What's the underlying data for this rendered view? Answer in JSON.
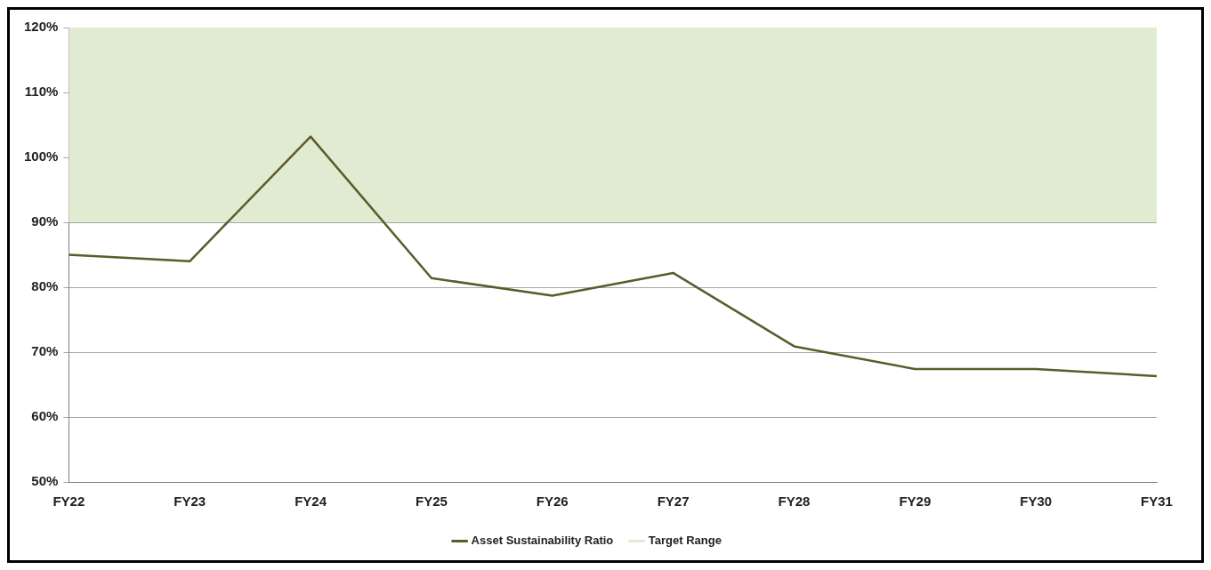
{
  "chart_data": {
    "type": "line",
    "categories": [
      "FY22",
      "FY23",
      "FY24",
      "FY25",
      "FY26",
      "FY27",
      "FY28",
      "FY29",
      "FY30",
      "FY31"
    ],
    "series": [
      {
        "name": "Asset Sustainability Ratio",
        "color": "#5b5b2b",
        "values": [
          85,
          84,
          103.2,
          81.4,
          78.7,
          82.2,
          70.9,
          67.4,
          67.4,
          66.3
        ]
      }
    ],
    "ylim": [
      50,
      120
    ],
    "yticks": [
      {
        "value": 50,
        "label": "50%"
      },
      {
        "value": 60,
        "label": "60%"
      },
      {
        "value": 70,
        "label": "70%"
      },
      {
        "value": 80,
        "label": "80%"
      },
      {
        "value": 90,
        "label": "90%"
      },
      {
        "value": 100,
        "label": "100%"
      },
      {
        "value": 110,
        "label": "110%"
      },
      {
        "value": 120,
        "label": "120%"
      }
    ],
    "bands": [
      {
        "axis": "y",
        "from": 90,
        "to": 120,
        "label": "Target Range",
        "color": "#e0ebd2"
      }
    ],
    "grid": "y",
    "legend": "bottom",
    "marker": "none",
    "line_style": "solid"
  }
}
